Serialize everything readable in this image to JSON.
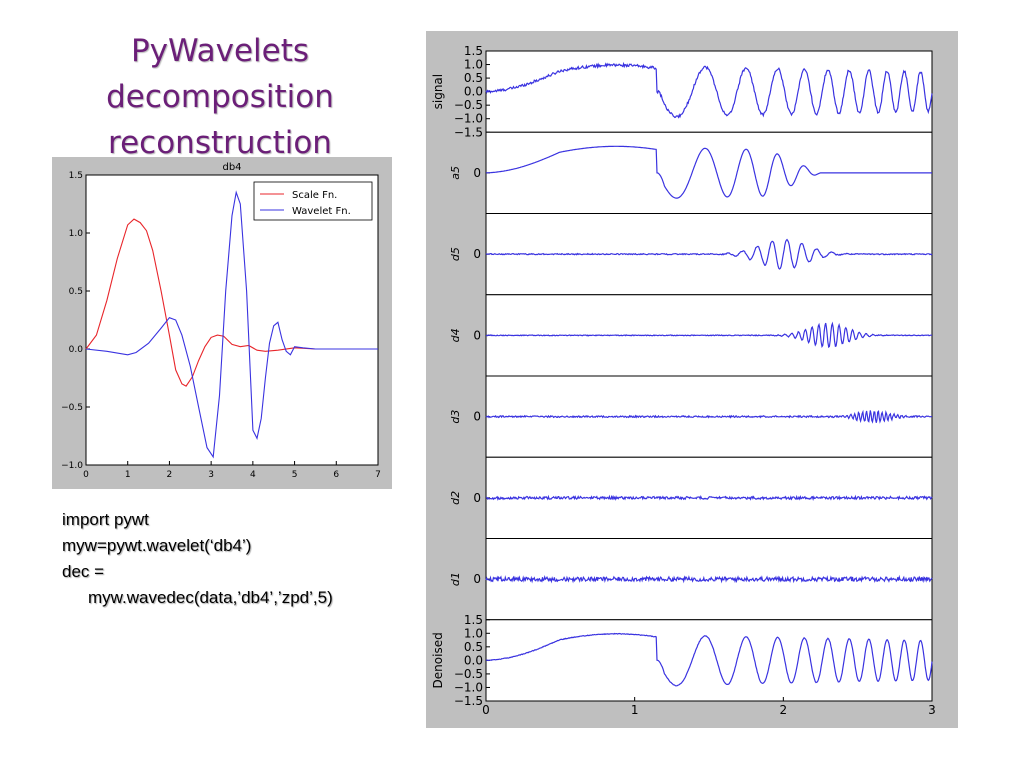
{
  "slide": {
    "title_lines": [
      "PyWavelets",
      "decomposition",
      "reconstruction"
    ],
    "code_lines": [
      "import pywt",
      "myw=pywt.wavelet(‘db4’)",
      "dec =",
      "myw.wavedec(data,’db4’,’zpd’,5)"
    ]
  },
  "colors": {
    "title": "#6b1f78",
    "figure_bg": "#bfbfbf",
    "red": "#e8262b",
    "blue": "#3a33e0"
  },
  "chart_data": [
    {
      "type": "line",
      "title": "db4",
      "xlim": [
        0,
        7
      ],
      "ylim": [
        -1.0,
        1.5
      ],
      "x_ticks": [
        "0",
        "1",
        "2",
        "3",
        "4",
        "5",
        "6",
        "7"
      ],
      "y_ticks": [
        "1.5",
        "1.0",
        "0.5",
        "0.0",
        "−0.5",
        "−1.0"
      ],
      "legend": [
        "Scale Fn.",
        "Wavelet Fn."
      ],
      "legend_position": "top-right",
      "series": [
        {
          "name": "Scale Fn.",
          "color": "#e8262b",
          "x": [
            0,
            0.25,
            0.5,
            0.75,
            1.0,
            1.15,
            1.3,
            1.45,
            1.6,
            1.8,
            2.0,
            2.15,
            2.3,
            2.4,
            2.55,
            2.7,
            2.85,
            3.0,
            3.15,
            3.3,
            3.5,
            3.7,
            3.9,
            4.1,
            4.3,
            4.6,
            5.0,
            5.5,
            6.0,
            7.0
          ],
          "y": [
            0,
            0.12,
            0.42,
            0.78,
            1.07,
            1.12,
            1.09,
            1.02,
            0.85,
            0.5,
            0.12,
            -0.18,
            -0.3,
            -0.32,
            -0.24,
            -0.1,
            0.02,
            0.1,
            0.12,
            0.11,
            0.04,
            0.02,
            0.03,
            -0.01,
            -0.02,
            -0.01,
            0.01,
            0,
            0,
            0
          ]
        },
        {
          "name": "Wavelet Fn.",
          "color": "#3a33e0",
          "x": [
            0,
            0.5,
            1.0,
            1.2,
            1.5,
            1.8,
            2.0,
            2.15,
            2.3,
            2.5,
            2.7,
            2.9,
            3.05,
            3.2,
            3.35,
            3.5,
            3.6,
            3.7,
            3.85,
            4.0,
            4.1,
            4.2,
            4.3,
            4.4,
            4.5,
            4.6,
            4.7,
            4.8,
            4.9,
            5.0,
            5.2,
            5.5,
            6.0,
            7.0
          ],
          "y": [
            0,
            -0.02,
            -0.05,
            -0.03,
            0.05,
            0.18,
            0.27,
            0.25,
            0.12,
            -0.15,
            -0.5,
            -0.85,
            -0.93,
            -0.4,
            0.5,
            1.15,
            1.35,
            1.25,
            0.5,
            -0.7,
            -0.77,
            -0.6,
            -0.25,
            0.05,
            0.2,
            0.23,
            0.08,
            -0.02,
            -0.05,
            0.02,
            0.01,
            0,
            0,
            0
          ]
        }
      ]
    },
    {
      "type": "line",
      "xlim": [
        0,
        3
      ],
      "x_ticks": [
        "0",
        "1",
        "2",
        "3"
      ],
      "panels": [
        {
          "ylabel": "signal",
          "ylim": [
            -1.5,
            1.5
          ],
          "y_ticks": [
            "1.5",
            "1.0",
            "0.5",
            "0.0",
            "−0.5",
            "−1.0",
            "−1.5"
          ],
          "kind": "signal",
          "noise": 0.05
        },
        {
          "ylabel": "a5",
          "ylim": [
            -1.5,
            1.5
          ],
          "y_ticks": [
            "0"
          ],
          "kind": "signal",
          "noise": 0
        },
        {
          "ylabel": "d5",
          "ylim": [
            -1.5,
            1.5
          ],
          "y_ticks": [
            "0"
          ],
          "kind": "detail",
          "center": 2.0,
          "width": 0.22,
          "freq": 10,
          "amp": 0.55,
          "noise": 0.02
        },
        {
          "ylabel": "d4",
          "ylim": [
            -1.5,
            1.5
          ],
          "y_ticks": [
            "0"
          ],
          "kind": "detail",
          "center": 2.3,
          "width": 0.18,
          "freq": 22,
          "amp": 0.45,
          "noise": 0.015
        },
        {
          "ylabel": "d3",
          "ylim": [
            -1.5,
            1.5
          ],
          "y_ticks": [
            "0"
          ],
          "kind": "detail",
          "center": 2.6,
          "width": 0.14,
          "freq": 38,
          "amp": 0.22,
          "noise": 0.03
        },
        {
          "ylabel": "d2",
          "ylim": [
            -1.5,
            1.5
          ],
          "y_ticks": [
            "0"
          ],
          "kind": "noise",
          "noise": 0.05
        },
        {
          "ylabel": "d1",
          "ylim": [
            -1.5,
            1.5
          ],
          "y_ticks": [
            "0"
          ],
          "kind": "noise",
          "noise": 0.08
        },
        {
          "ylabel": "Denoised",
          "ylim": [
            -1.5,
            1.5
          ],
          "y_ticks": [
            "1.5",
            "1.0",
            "0.5",
            "0.0",
            "−0.5",
            "−1.0",
            "−1.5"
          ],
          "kind": "signal",
          "noise": 0.012
        }
      ]
    }
  ]
}
